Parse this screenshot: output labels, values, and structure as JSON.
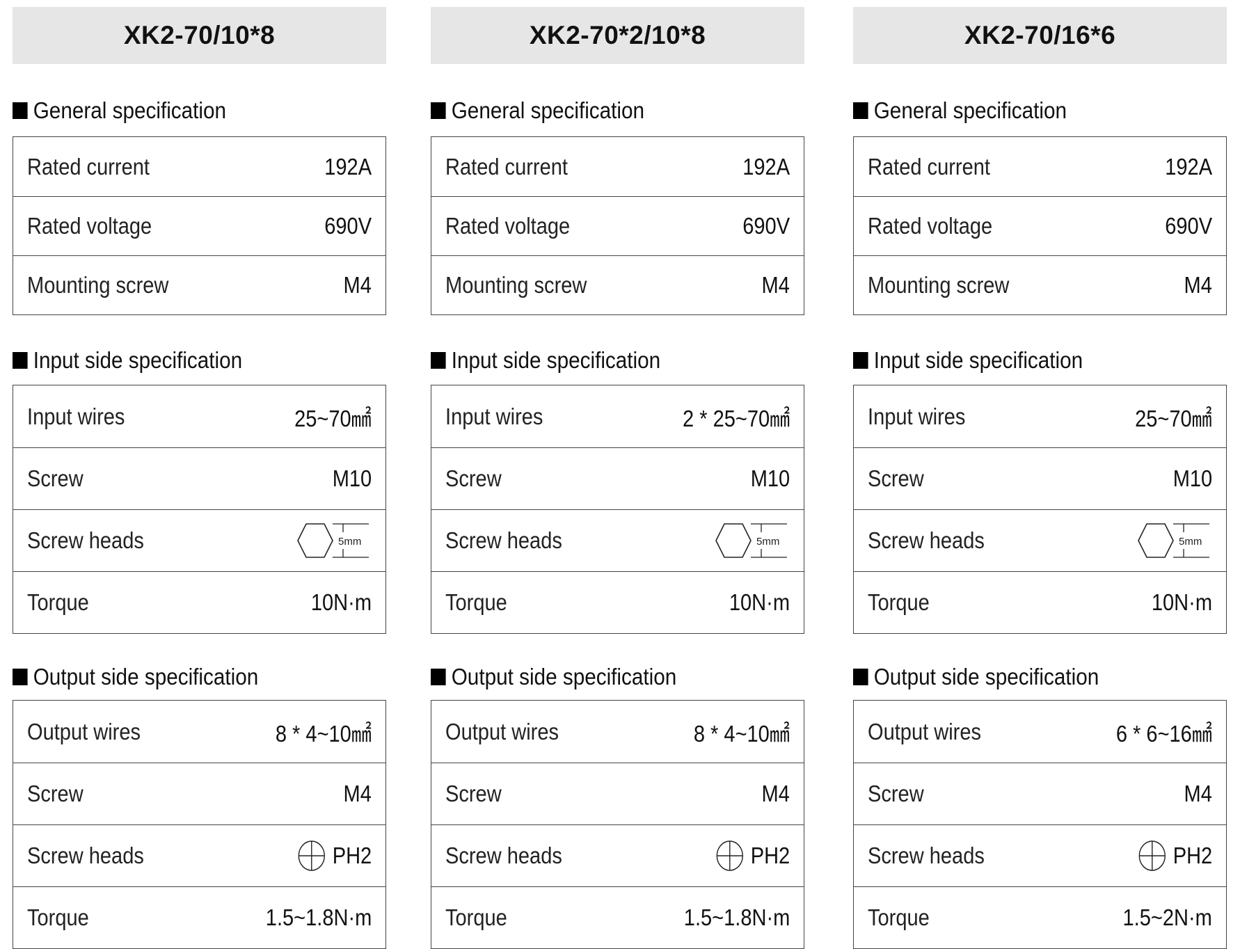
{
  "sections": {
    "general": "General specification",
    "input": "Input side specification",
    "output": "Output side specification"
  },
  "labels": {
    "rated_current": "Rated current",
    "rated_voltage": "Rated voltage",
    "mounting_screw": "Mounting screw",
    "input_wires": "Input wires",
    "output_wires": "Output wires",
    "screw": "Screw",
    "screw_heads": "Screw heads",
    "torque": "Torque"
  },
  "icons": {
    "hex": "hex-socket-icon",
    "phillips": "phillips-head-icon",
    "bullet": "black-square-icon"
  },
  "models": [
    {
      "name": "XK2-70/10*8",
      "general": {
        "rated_current": "192A",
        "rated_voltage": "690V",
        "mounting_screw": "M4"
      },
      "input": {
        "wires": "25~70㎟",
        "screw": "M10",
        "head_size": "5mm",
        "torque": "10N·m"
      },
      "output": {
        "wires": "8 * 4~10㎟",
        "screw": "M4",
        "head": "PH2",
        "torque": "1.5~1.8N·m"
      }
    },
    {
      "name": "XK2-70*2/10*8",
      "general": {
        "rated_current": "192A",
        "rated_voltage": "690V",
        "mounting_screw": "M4"
      },
      "input": {
        "wires": "2 * 25~70㎟",
        "screw": "M10",
        "head_size": "5mm",
        "torque": "10N·m"
      },
      "output": {
        "wires": "8 * 4~10㎟",
        "screw": "M4",
        "head": "PH2",
        "torque": "1.5~1.8N·m"
      }
    },
    {
      "name": "XK2-70/16*6",
      "general": {
        "rated_current": "192A",
        "rated_voltage": "690V",
        "mounting_screw": "M4"
      },
      "input": {
        "wires": "25~70㎟",
        "screw": "M10",
        "head_size": "5mm",
        "torque": "10N·m"
      },
      "output": {
        "wires": "6 * 6~16㎟",
        "screw": "M4",
        "head": "PH2",
        "torque": "1.5~2N·m"
      }
    }
  ]
}
